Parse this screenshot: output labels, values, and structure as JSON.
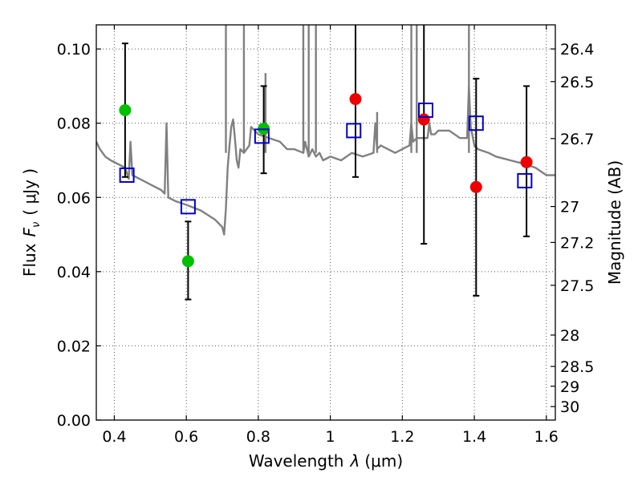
{
  "chart_data": {
    "type": "scatter",
    "xlabel": "Wavelength",
    "xlabel_symbol": "λ",
    "xlabel_unit": "(μm)",
    "ylabel": "Flux",
    "ylabel_symbol": "F",
    "ylabel_sub": "ν",
    "ylabel_unit": "( μJy )",
    "y2label": "Magnitude (AB)",
    "xlim": [
      0.35,
      1.625
    ],
    "ylim": [
      0.0,
      0.1065
    ],
    "xticks": [
      0.4,
      0.6,
      0.8,
      1.0,
      1.2,
      1.4,
      1.6
    ],
    "xtick_labels": [
      "0.4",
      "0.6",
      "0.8",
      "1",
      "1.2",
      "1.4",
      "1.6"
    ],
    "yticks": [
      0.0,
      0.02,
      0.04,
      0.06,
      0.08,
      0.1
    ],
    "ytick_labels": [
      "0.00",
      "0.02",
      "0.04",
      "0.06",
      "0.08",
      "0.10"
    ],
    "y2ticks": [
      26.4,
      26.5,
      26.7,
      27,
      27.2,
      27.5,
      28,
      28.5,
      29,
      30
    ],
    "y2tick_labels": [
      "26.4",
      "26.5",
      "26.7",
      "27",
      "27.2",
      "27.5",
      "28",
      "28.5",
      "29",
      "30"
    ],
    "grid": true,
    "series": [
      {
        "name": "model spectrum",
        "kind": "line",
        "color": "#808080",
        "x": [
          0.35,
          0.36,
          0.375,
          0.39,
          0.41,
          0.43,
          0.44,
          0.445,
          0.45,
          0.47,
          0.49,
          0.51,
          0.53,
          0.54,
          0.545,
          0.55,
          0.57,
          0.6,
          0.64,
          0.68,
          0.7,
          0.705,
          0.71,
          0.715,
          0.72,
          0.725,
          0.73,
          0.735,
          0.74,
          0.745,
          0.75,
          0.76,
          0.775,
          0.78,
          0.8,
          0.83,
          0.86,
          0.88,
          0.9,
          0.925,
          0.93,
          0.94,
          0.95,
          0.96,
          0.97,
          0.98,
          1.0,
          1.03,
          1.06,
          1.09,
          1.12,
          1.125,
          1.13,
          1.14,
          1.18,
          1.22,
          1.225,
          1.23,
          1.24,
          1.27,
          1.275,
          1.28,
          1.29,
          1.3,
          1.33,
          1.36,
          1.38,
          1.385,
          1.39,
          1.4,
          1.41,
          1.44,
          1.46,
          1.5,
          1.54,
          1.57,
          1.6,
          1.625
        ],
        "y": [
          0.075,
          0.073,
          0.071,
          0.07,
          0.069,
          0.068,
          0.065,
          0.075,
          0.066,
          0.065,
          0.064,
          0.063,
          0.062,
          0.061,
          0.08,
          0.06,
          0.059,
          0.058,
          0.0565,
          0.054,
          0.052,
          0.05,
          0.057,
          0.068,
          0.074,
          0.079,
          0.081,
          0.076,
          0.07,
          0.068,
          0.073,
          0.072,
          0.074,
          0.079,
          0.077,
          0.076,
          0.075,
          0.073,
          0.073,
          0.072,
          0.075,
          0.071,
          0.073,
          0.071,
          0.072,
          0.07,
          0.071,
          0.07,
          0.072,
          0.071,
          0.072,
          0.08,
          0.073,
          0.074,
          0.072,
          0.074,
          0.08,
          0.075,
          0.076,
          0.076,
          0.08,
          0.077,
          0.077,
          0.078,
          0.078,
          0.076,
          0.076,
          0.09,
          0.079,
          0.074,
          0.073,
          0.072,
          0.071,
          0.07,
          0.069,
          0.068,
          0.066,
          0.066
        ]
      },
      {
        "name": "spectrum emission lines",
        "kind": "spikes",
        "color": "#808080",
        "x": [
          0.71,
          0.76,
          0.82,
          0.925,
          0.94,
          0.96,
          1.13,
          1.225,
          1.24,
          1.385
        ],
        "y_top": [
          0.1065,
          0.1065,
          0.0935,
          0.1065,
          0.1065,
          0.1065,
          0.083,
          0.1065,
          0.1065,
          0.1065
        ]
      },
      {
        "name": "observed (green)",
        "kind": "points",
        "color": "#00c000",
        "marker": "circle",
        "x": [
          0.43,
          0.605,
          0.815
        ],
        "y": [
          0.0835,
          0.0428,
          0.0785
        ],
        "yerr_low": [
          0.0655,
          0.0325,
          0.0665
        ],
        "yerr_high": [
          0.1015,
          0.0535,
          0.09
        ]
      },
      {
        "name": "observed (red)",
        "kind": "points",
        "color": "#ee0000",
        "marker": "circle",
        "x": [
          1.07,
          1.26,
          1.405,
          1.545
        ],
        "y": [
          0.0865,
          0.081,
          0.0628,
          0.0695
        ],
        "yerr_low": [
          0.0655,
          0.0475,
          0.0335,
          0.0495
        ],
        "yerr_high": [
          0.1065,
          0.1065,
          0.092,
          0.09
        ]
      },
      {
        "name": "model photometry",
        "kind": "points",
        "color": "#0000cc",
        "marker": "open-square",
        "x": [
          0.435,
          0.605,
          0.81,
          1.065,
          1.265,
          1.405,
          1.54
        ],
        "y": [
          0.066,
          0.0575,
          0.0765,
          0.078,
          0.0835,
          0.08,
          0.0645
        ]
      }
    ]
  }
}
